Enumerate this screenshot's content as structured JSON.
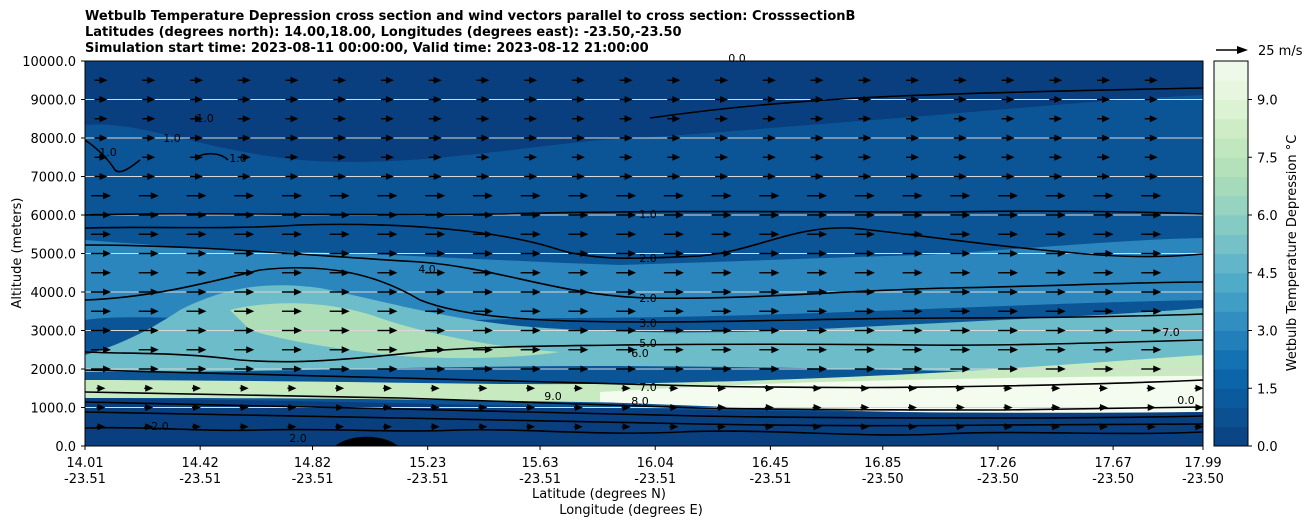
{
  "chart_data": {
    "type": "contourf",
    "title": [
      "Wetbulb Temperature Depression cross section and wind vectors parallel to cross section: CrosssectionB",
      "Latitudes (degrees north): 14.00,18.00, Longitudes (degrees east): -23.50,-23.50",
      "Simulation start time: 2023-08-11 00:00:00, Valid time: 2023-08-12 21:00:00"
    ],
    "ylabel": "Altitude (meters)",
    "xlabel_lat": "Latitude (degrees N)",
    "xlabel_lon": "Longitude (degrees E)",
    "ylim": [
      0,
      10000
    ],
    "y_ticks": [
      "0.0",
      "1000.0",
      "2000.0",
      "3000.0",
      "4000.0",
      "5000.0",
      "6000.0",
      "7000.0",
      "8000.0",
      "9000.0",
      "10000.0"
    ],
    "x_ticks": [
      {
        "lat": "14.01",
        "lon": "-23.51"
      },
      {
        "lat": "14.42",
        "lon": "-23.51"
      },
      {
        "lat": "14.82",
        "lon": "-23.51"
      },
      {
        "lat": "15.23",
        "lon": "-23.51"
      },
      {
        "lat": "15.63",
        "lon": "-23.51"
      },
      {
        "lat": "16.04",
        "lon": "-23.51"
      },
      {
        "lat": "16.45",
        "lon": "-23.51"
      },
      {
        "lat": "16.85",
        "lon": "-23.50"
      },
      {
        "lat": "17.26",
        "lon": "-23.50"
      },
      {
        "lat": "17.67",
        "lon": "-23.50"
      },
      {
        "lat": "17.99",
        "lon": "-23.50"
      }
    ],
    "x_tick_lat_values": [
      14.01,
      14.42,
      14.82,
      15.23,
      15.63,
      16.04,
      16.45,
      16.85,
      17.26,
      17.67,
      17.99
    ],
    "colorbar": {
      "label": "Wetbulb Temperature Depression °C",
      "ticks": [
        "0.0",
        "1.5",
        "3.0",
        "4.5",
        "6.0",
        "7.5",
        "9.0"
      ],
      "range": [
        0,
        10
      ],
      "colormap": [
        "#0a3f7f",
        "#0b5597",
        "#0c6aae",
        "#2b86bd",
        "#46a5c9",
        "#6cbcc9",
        "#8ecfc2",
        "#addeb8",
        "#c8eac0",
        "#e1f4d9",
        "#f4fbef"
      ]
    },
    "quiver_key": {
      "label": "25 m/s",
      "speed": 25
    },
    "contour_labels": [
      "1.0",
      "1.0",
      "1.0",
      "1.0",
      "1.0",
      "2.0",
      "2.0",
      "3.0",
      "4.0",
      "5.0",
      "6.0",
      "7.0",
      "7.0",
      "8.0",
      "9.0",
      "0.0",
      "0.0",
      "2.0",
      "2.0"
    ],
    "grid": "horizontal"
  }
}
